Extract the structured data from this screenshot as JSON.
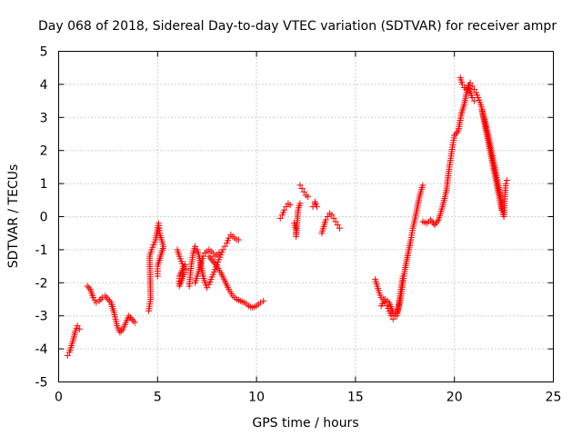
{
  "chart_data": {
    "type": "scatter",
    "title": "Day 068 of 2018, Sidereal Day-to-day VTEC variation (SDTVAR) for receiver ampr",
    "xlabel": "GPS time / hours",
    "ylabel": "SDTVAR / TECUs",
    "xlim": [
      0,
      25
    ],
    "ylim": [
      -5,
      5
    ],
    "xticks": [
      "0",
      "5",
      "10",
      "15",
      "20",
      "25"
    ],
    "yticks": [
      "-5",
      "-4",
      "-3",
      "-2",
      "-1",
      "0",
      "1",
      "2",
      "3",
      "4",
      "5"
    ],
    "grid": true,
    "marker": "+",
    "color": "#ff0000",
    "series": [
      {
        "name": "SDTVAR",
        "segments": [
          [
            [
              0.45,
              -4.2
            ],
            [
              0.55,
              -4.1
            ],
            [
              0.65,
              -3.9
            ],
            [
              0.75,
              -3.7
            ],
            [
              0.85,
              -3.45
            ],
            [
              0.95,
              -3.3
            ],
            [
              1.05,
              -3.4
            ]
          ],
          [
            [
              1.45,
              -2.1
            ],
            [
              1.6,
              -2.2
            ],
            [
              1.75,
              -2.45
            ],
            [
              1.9,
              -2.6
            ],
            [
              2.05,
              -2.55
            ],
            [
              2.2,
              -2.45
            ],
            [
              2.35,
              -2.4
            ],
            [
              2.5,
              -2.5
            ],
            [
              2.65,
              -2.6
            ],
            [
              2.8,
              -2.9
            ],
            [
              2.95,
              -3.3
            ],
            [
              3.1,
              -3.5
            ],
            [
              3.25,
              -3.4
            ],
            [
              3.4,
              -3.2
            ],
            [
              3.55,
              -3.0
            ],
            [
              3.7,
              -3.1
            ],
            [
              3.85,
              -3.2
            ]
          ],
          [
            [
              4.55,
              -2.85
            ],
            [
              4.65,
              -2.5
            ],
            [
              4.6,
              -1.2
            ],
            [
              4.7,
              -1.0
            ],
            [
              4.8,
              -0.85
            ],
            [
              4.9,
              -0.7
            ],
            [
              5.0,
              -0.4
            ],
            [
              5.05,
              -0.2
            ],
            [
              5.1,
              -0.5
            ],
            [
              5.2,
              -0.7
            ],
            [
              5.3,
              -0.9
            ],
            [
              5.0,
              -1.5
            ],
            [
              5.0,
              -1.8
            ]
          ],
          [
            [
              6.0,
              -1.0
            ],
            [
              6.1,
              -1.2
            ],
            [
              6.2,
              -1.35
            ],
            [
              6.3,
              -1.5
            ],
            [
              6.4,
              -1.45
            ],
            [
              6.1,
              -1.8
            ],
            [
              6.1,
              -2.1
            ],
            [
              6.35,
              -1.7
            ],
            [
              6.45,
              -1.6
            ]
          ],
          [
            [
              6.6,
              -2.1
            ],
            [
              6.7,
              -1.5
            ],
            [
              6.8,
              -1.1
            ],
            [
              6.9,
              -0.9
            ],
            [
              7.0,
              -1.0
            ],
            [
              7.1,
              -1.2
            ],
            [
              7.2,
              -1.5
            ],
            [
              7.3,
              -1.8
            ],
            [
              7.4,
              -2.0
            ],
            [
              7.5,
              -2.15
            ],
            [
              7.6,
              -2.05
            ],
            [
              7.7,
              -1.9
            ],
            [
              7.8,
              -1.75
            ],
            [
              7.9,
              -1.6
            ],
            [
              8.0,
              -1.45
            ],
            [
              8.1,
              -1.3
            ],
            [
              8.2,
              -1.15
            ],
            [
              8.3,
              -1.0
            ],
            [
              8.4,
              -0.9
            ],
            [
              8.5,
              -0.8
            ],
            [
              8.6,
              -0.65
            ],
            [
              8.7,
              -0.55
            ],
            [
              8.8,
              -0.6
            ],
            [
              8.9,
              -0.65
            ],
            [
              9.0,
              -0.7
            ],
            [
              9.1,
              -0.7
            ]
          ],
          [
            [
              6.9,
              -2.0
            ],
            [
              7.0,
              -1.8
            ],
            [
              7.1,
              -1.6
            ],
            [
              7.2,
              -1.4
            ],
            [
              7.3,
              -1.2
            ],
            [
              7.4,
              -1.1
            ],
            [
              7.5,
              -1.05
            ],
            [
              7.6,
              -1.0
            ],
            [
              7.7,
              -1.05
            ],
            [
              7.8,
              -1.1
            ],
            [
              7.9,
              -1.2
            ],
            [
              8.0,
              -1.15
            ],
            [
              8.1,
              -1.1
            ]
          ],
          [
            [
              7.6,
              -1.2
            ],
            [
              7.8,
              -1.35
            ],
            [
              8.0,
              -1.5
            ],
            [
              8.2,
              -1.7
            ],
            [
              8.4,
              -1.95
            ],
            [
              8.6,
              -2.2
            ],
            [
              8.8,
              -2.4
            ],
            [
              9.0,
              -2.5
            ],
            [
              9.2,
              -2.55
            ],
            [
              9.4,
              -2.6
            ],
            [
              9.6,
              -2.7
            ],
            [
              9.8,
              -2.75
            ],
            [
              10.0,
              -2.7
            ],
            [
              10.2,
              -2.6
            ],
            [
              10.35,
              -2.55
            ]
          ],
          [
            [
              11.2,
              -0.05
            ],
            [
              11.3,
              0.05
            ],
            [
              11.4,
              0.2
            ],
            [
              11.5,
              0.3
            ],
            [
              11.6,
              0.4
            ],
            [
              11.7,
              0.35
            ]
          ],
          [
            [
              11.9,
              -0.2
            ],
            [
              12.0,
              -0.4
            ],
            [
              12.0,
              -0.6
            ],
            [
              12.1,
              0.2
            ],
            [
              12.2,
              0.4
            ]
          ],
          [
            [
              12.2,
              0.95
            ],
            [
              12.3,
              0.85
            ],
            [
              12.4,
              0.75
            ],
            [
              12.5,
              0.65
            ],
            [
              12.6,
              0.6
            ]
          ],
          [
            [
              12.85,
              0.3
            ],
            [
              12.95,
              0.4
            ],
            [
              13.05,
              0.3
            ],
            [
              12.95,
              0.45
            ]
          ],
          [
            [
              13.3,
              -0.5
            ],
            [
              13.4,
              -0.3
            ],
            [
              13.5,
              -0.1
            ],
            [
              13.6,
              0.0
            ],
            [
              13.7,
              0.1
            ],
            [
              13.8,
              0.05
            ],
            [
              13.9,
              -0.05
            ],
            [
              14.0,
              -0.15
            ],
            [
              14.1,
              -0.25
            ],
            [
              14.2,
              -0.35
            ]
          ],
          [
            [
              16.0,
              -1.9
            ],
            [
              16.1,
              -2.1
            ],
            [
              16.2,
              -2.3
            ],
            [
              16.3,
              -2.45
            ],
            [
              16.4,
              -2.5
            ],
            [
              16.5,
              -2.6
            ],
            [
              16.6,
              -2.7
            ],
            [
              16.7,
              -2.85
            ],
            [
              16.8,
              -3.0
            ],
            [
              16.9,
              -3.1
            ],
            [
              17.0,
              -3.0
            ],
            [
              17.1,
              -2.9
            ],
            [
              17.2,
              -2.7
            ],
            [
              17.3,
              -2.4
            ],
            [
              17.4,
              -2.0
            ],
            [
              17.5,
              -1.6
            ],
            [
              17.6,
              -1.3
            ],
            [
              17.7,
              -1.0
            ],
            [
              17.8,
              -0.7
            ],
            [
              17.9,
              -0.35
            ],
            [
              18.0,
              -0.1
            ],
            [
              18.1,
              0.2
            ],
            [
              18.2,
              0.5
            ],
            [
              18.3,
              0.75
            ],
            [
              18.4,
              0.95
            ]
          ],
          [
            [
              16.3,
              -2.7
            ],
            [
              16.5,
              -2.5
            ],
            [
              16.7,
              -2.6
            ],
            [
              16.9,
              -2.9
            ],
            [
              17.1,
              -3.0
            ],
            [
              17.2,
              -2.6
            ],
            [
              17.3,
              -2.2
            ],
            [
              17.4,
              -1.8
            ]
          ],
          [
            [
              18.4,
              -0.15
            ],
            [
              18.6,
              -0.2
            ],
            [
              18.8,
              -0.1
            ],
            [
              19.0,
              -0.25
            ],
            [
              19.2,
              -0.1
            ],
            [
              19.4,
              0.3
            ],
            [
              19.6,
              0.8
            ],
            [
              19.7,
              1.3
            ],
            [
              19.8,
              1.7
            ],
            [
              19.9,
              2.1
            ],
            [
              20.0,
              2.45
            ],
            [
              20.2,
              2.6
            ],
            [
              20.35,
              3.1
            ],
            [
              20.5,
              3.4
            ],
            [
              20.6,
              3.7
            ],
            [
              20.7,
              3.95
            ],
            [
              20.8,
              3.8
            ],
            [
              20.9,
              3.6
            ],
            [
              21.0,
              3.5
            ]
          ],
          [
            [
              20.3,
              4.2
            ],
            [
              20.4,
              4.0
            ],
            [
              20.5,
              3.9
            ],
            [
              20.6,
              3.85
            ],
            [
              20.7,
              3.9
            ],
            [
              20.8,
              4.05
            ],
            [
              20.9,
              3.95
            ],
            [
              21.0,
              3.85
            ],
            [
              21.1,
              3.75
            ],
            [
              21.2,
              3.6
            ],
            [
              21.3,
              3.45
            ],
            [
              21.4,
              3.25
            ],
            [
              21.5,
              3.0
            ],
            [
              21.6,
              2.75
            ],
            [
              21.7,
              2.5
            ],
            [
              21.8,
              2.2
            ],
            [
              21.9,
              1.9
            ],
            [
              22.0,
              1.6
            ],
            [
              22.1,
              1.3
            ],
            [
              22.2,
              1.0
            ],
            [
              22.3,
              0.7
            ],
            [
              22.4,
              0.3
            ],
            [
              22.5,
              0.0
            ],
            [
              22.55,
              0.6
            ],
            [
              22.6,
              1.0
            ],
            [
              22.65,
              1.1
            ]
          ],
          [
            [
              21.4,
              3.2
            ],
            [
              21.5,
              2.9
            ],
            [
              21.6,
              2.6
            ],
            [
              21.7,
              2.3
            ],
            [
              21.8,
              2.0
            ],
            [
              21.9,
              1.7
            ],
            [
              22.0,
              1.4
            ],
            [
              22.1,
              1.1
            ],
            [
              22.2,
              0.8
            ],
            [
              22.3,
              0.5
            ],
            [
              22.4,
              0.2
            ]
          ]
        ]
      }
    ]
  }
}
